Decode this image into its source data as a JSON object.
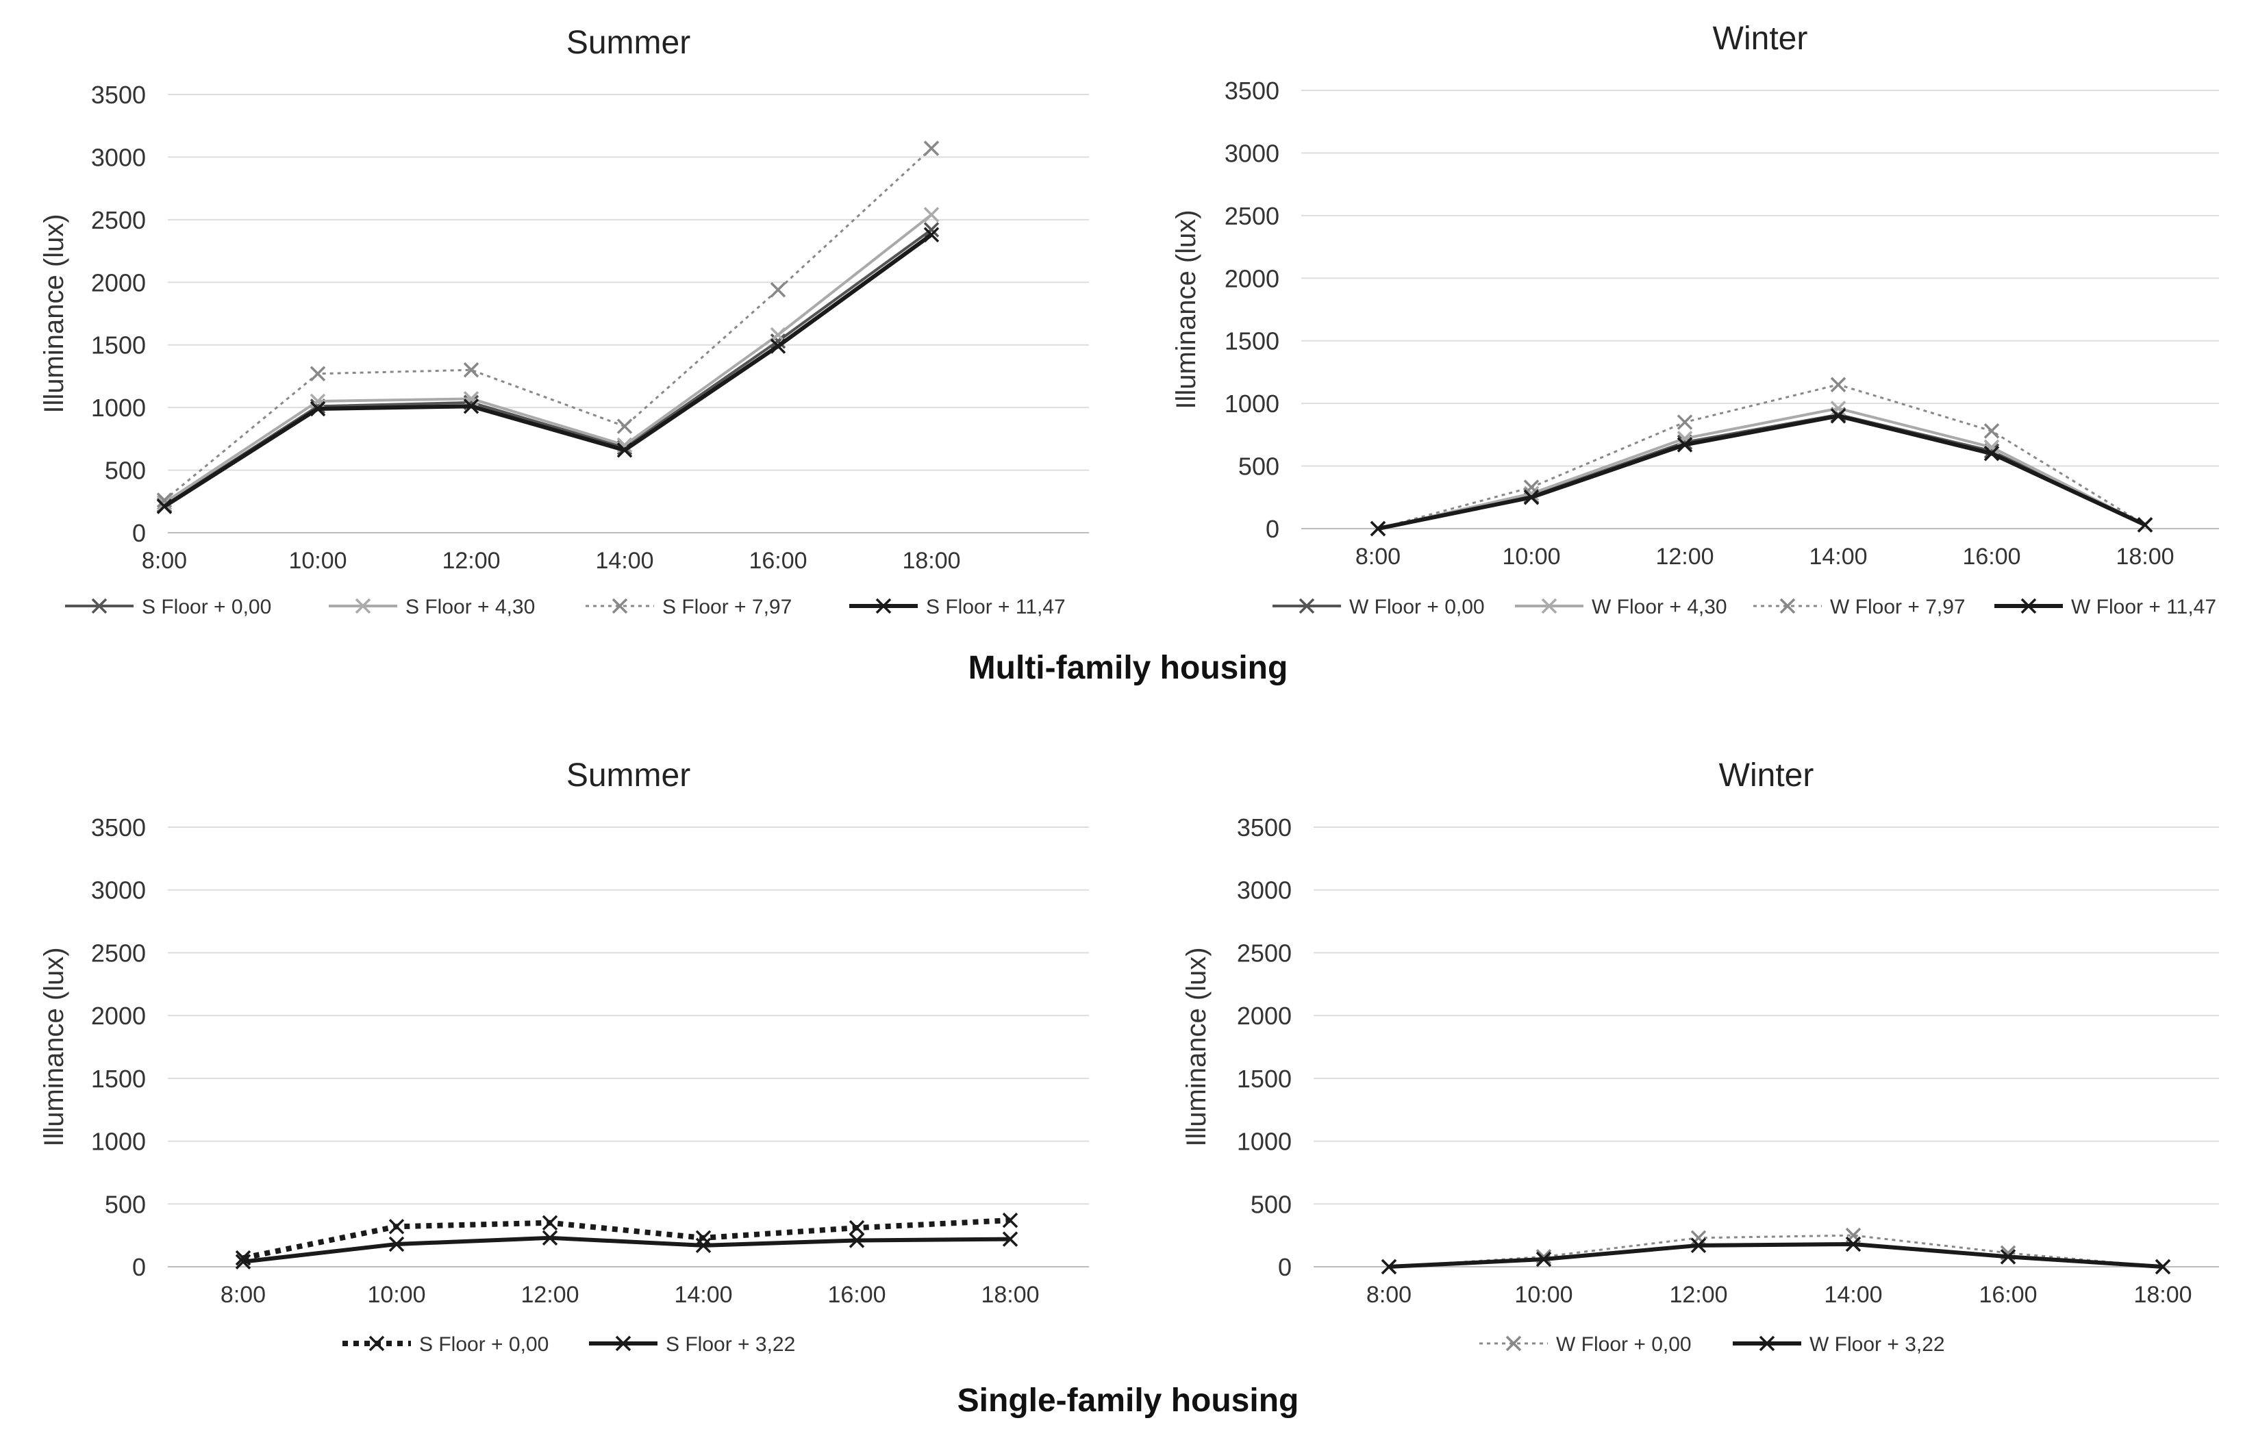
{
  "figure": {
    "groups": [
      {
        "caption": "Multi-family housing"
      },
      {
        "caption": "Single-family housing"
      }
    ]
  },
  "chart_data": [
    {
      "type": "line",
      "group": "Multi-family housing",
      "title": "Summer",
      "xlabel": "",
      "ylabel": "Illuminance (lux)",
      "categories": [
        "8:00",
        "10:00",
        "12:00",
        "14:00",
        "16:00",
        "18:00"
      ],
      "yticks": [
        0,
        500,
        1000,
        1500,
        2000,
        2500,
        3000,
        3500
      ],
      "ylim": [
        0,
        3500
      ],
      "grid": true,
      "legend_position": "bottom",
      "series": [
        {
          "name": "S Floor + 0,00",
          "values": [
            220,
            1010,
            1040,
            680,
            1530,
            2420
          ],
          "color": "#555555",
          "style": "solid",
          "marker": "x"
        },
        {
          "name": "S Floor + 4,30",
          "values": [
            240,
            1050,
            1070,
            700,
            1580,
            2540
          ],
          "color": "#aaaaaa",
          "style": "solid",
          "marker": "x"
        },
        {
          "name": "S Floor + 7,97",
          "values": [
            260,
            1270,
            1300,
            850,
            1940,
            3070
          ],
          "color": "#888888",
          "style": "dotted",
          "marker": "x"
        },
        {
          "name": "S Floor + 11,47",
          "values": [
            210,
            990,
            1010,
            660,
            1490,
            2380
          ],
          "color": "#1a1a1a",
          "style": "solid-thick",
          "marker": "x"
        }
      ]
    },
    {
      "type": "line",
      "group": "Multi-family housing",
      "title": "Winter",
      "xlabel": "",
      "ylabel": "Illuminance (lux)",
      "categories": [
        "8:00",
        "10:00",
        "12:00",
        "14:00",
        "16:00",
        "18:00"
      ],
      "yticks": [
        0,
        500,
        1000,
        1500,
        2000,
        2500,
        3000,
        3500
      ],
      "ylim": [
        0,
        3500
      ],
      "grid": true,
      "legend_position": "bottom",
      "series": [
        {
          "name": "W Floor + 0,00",
          "values": [
            0,
            260,
            690,
            910,
            620,
            30
          ],
          "color": "#555555",
          "style": "solid",
          "marker": "x"
        },
        {
          "name": "W Floor + 4,30",
          "values": [
            0,
            280,
            720,
            960,
            650,
            30
          ],
          "color": "#aaaaaa",
          "style": "solid",
          "marker": "x"
        },
        {
          "name": "W Floor + 7,97",
          "values": [
            0,
            330,
            850,
            1150,
            780,
            30
          ],
          "color": "#888888",
          "style": "dotted",
          "marker": "x"
        },
        {
          "name": "W Floor + 11,47",
          "values": [
            0,
            250,
            670,
            900,
            600,
            30
          ],
          "color": "#1a1a1a",
          "style": "solid-thick",
          "marker": "x"
        }
      ]
    },
    {
      "type": "line",
      "group": "Single-family housing",
      "title": "Summer",
      "xlabel": "",
      "ylabel": "Illuminance (lux)",
      "categories": [
        "8:00",
        "10:00",
        "12:00",
        "14:00",
        "16:00",
        "18:00"
      ],
      "yticks": [
        0,
        500,
        1000,
        1500,
        2000,
        2500,
        3000,
        3500
      ],
      "ylim": [
        0,
        3500
      ],
      "grid": true,
      "legend_position": "bottom",
      "series": [
        {
          "name": "S Floor + 0,00",
          "values": [
            70,
            320,
            350,
            230,
            310,
            370
          ],
          "color": "#1a1a1a",
          "style": "dotted-thick",
          "marker": "x"
        },
        {
          "name": "S Floor + 3,22",
          "values": [
            40,
            180,
            230,
            170,
            210,
            220
          ],
          "color": "#1a1a1a",
          "style": "solid-thick",
          "marker": "x"
        }
      ]
    },
    {
      "type": "line",
      "group": "Single-family housing",
      "title": "Winter",
      "xlabel": "",
      "ylabel": "Illuminance (lux)",
      "categories": [
        "8:00",
        "10:00",
        "12:00",
        "14:00",
        "16:00",
        "18:00"
      ],
      "yticks": [
        0,
        500,
        1000,
        1500,
        2000,
        2500,
        3000,
        3500
      ],
      "ylim": [
        0,
        3500
      ],
      "grid": true,
      "legend_position": "bottom",
      "series": [
        {
          "name": "W Floor + 0,00",
          "values": [
            0,
            80,
            230,
            250,
            110,
            0
          ],
          "color": "#888888",
          "style": "dotted",
          "marker": "x"
        },
        {
          "name": "W Floor + 3,22",
          "values": [
            0,
            60,
            170,
            180,
            80,
            0
          ],
          "color": "#1a1a1a",
          "style": "solid-thick",
          "marker": "x"
        }
      ]
    }
  ]
}
